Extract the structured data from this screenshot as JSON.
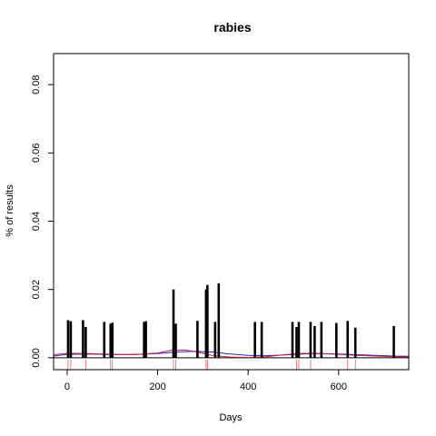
{
  "chart_data": {
    "type": "bar",
    "title": "rabies",
    "xlabel": "Days",
    "ylabel": "% of results",
    "xlim": [
      -30,
      755
    ],
    "ylim": [
      -0.0035,
      0.0891
    ],
    "x_ticks": [
      0,
      200,
      400,
      600
    ],
    "y_ticks": [
      0.0,
      0.02,
      0.04,
      0.06,
      0.08
    ],
    "y_tick_labels": [
      "0.00",
      "0.02",
      "0.04",
      "0.06",
      "0.08"
    ],
    "bars": [
      {
        "x": 2,
        "y": 0.011
      },
      {
        "x": 8,
        "y": 0.0107
      },
      {
        "x": 35,
        "y": 0.011
      },
      {
        "x": 41,
        "y": 0.009
      },
      {
        "x": 82,
        "y": 0.0105
      },
      {
        "x": 96,
        "y": 0.01
      },
      {
        "x": 100,
        "y": 0.0103
      },
      {
        "x": 170,
        "y": 0.0105
      },
      {
        "x": 174,
        "y": 0.0107
      },
      {
        "x": 235,
        "y": 0.02
      },
      {
        "x": 240,
        "y": 0.01
      },
      {
        "x": 288,
        "y": 0.0108
      },
      {
        "x": 307,
        "y": 0.02
      },
      {
        "x": 310,
        "y": 0.0213
      },
      {
        "x": 327,
        "y": 0.0105
      },
      {
        "x": 335,
        "y": 0.0218
      },
      {
        "x": 415,
        "y": 0.0105
      },
      {
        "x": 430,
        "y": 0.0105
      },
      {
        "x": 498,
        "y": 0.0105
      },
      {
        "x": 507,
        "y": 0.009
      },
      {
        "x": 512,
        "y": 0.0105
      },
      {
        "x": 538,
        "y": 0.0105
      },
      {
        "x": 547,
        "y": 0.0093
      },
      {
        "x": 562,
        "y": 0.0105
      },
      {
        "x": 595,
        "y": 0.0102
      },
      {
        "x": 620,
        "y": 0.0108
      },
      {
        "x": 637,
        "y": 0.0088
      },
      {
        "x": 722,
        "y": 0.0093
      }
    ],
    "series": [
      {
        "color": "#2020cc",
        "x": [
          -30,
          0,
          50,
          100,
          150,
          200,
          240,
          280,
          320,
          360,
          400,
          440,
          480,
          520,
          560,
          600,
          640,
          680,
          720,
          755
        ],
        "y": [
          0.0005,
          0.001,
          0.0011,
          0.0009,
          0.001,
          0.0012,
          0.0017,
          0.0019,
          0.0017,
          0.0011,
          0.0007,
          0.0006,
          0.0008,
          0.0011,
          0.0012,
          0.0011,
          0.0009,
          0.0007,
          0.0005,
          0.0004
        ]
      },
      {
        "color": "#cc2040",
        "x": [
          -30,
          0,
          50,
          100,
          150,
          200,
          230,
          260,
          290,
          320,
          360,
          400,
          440,
          480,
          520,
          560,
          600,
          640,
          680,
          720,
          755
        ],
        "y": [
          0.0009,
          0.0013,
          0.0012,
          0.001,
          0.0009,
          0.0014,
          0.0022,
          0.0023,
          0.0016,
          0.0007,
          0.0002,
          0.0001,
          0.0003,
          0.0009,
          0.0013,
          0.0012,
          0.001,
          0.0007,
          0.0005,
          0.0003,
          0.0002
        ]
      }
    ],
    "zero_line_color": "#000000",
    "rug_color": "#e06060",
    "rug_x": [
      2,
      8,
      41,
      96,
      100,
      235,
      240,
      307,
      310,
      507,
      512,
      538,
      620,
      637
    ],
    "grid": false,
    "legend": "none"
  }
}
